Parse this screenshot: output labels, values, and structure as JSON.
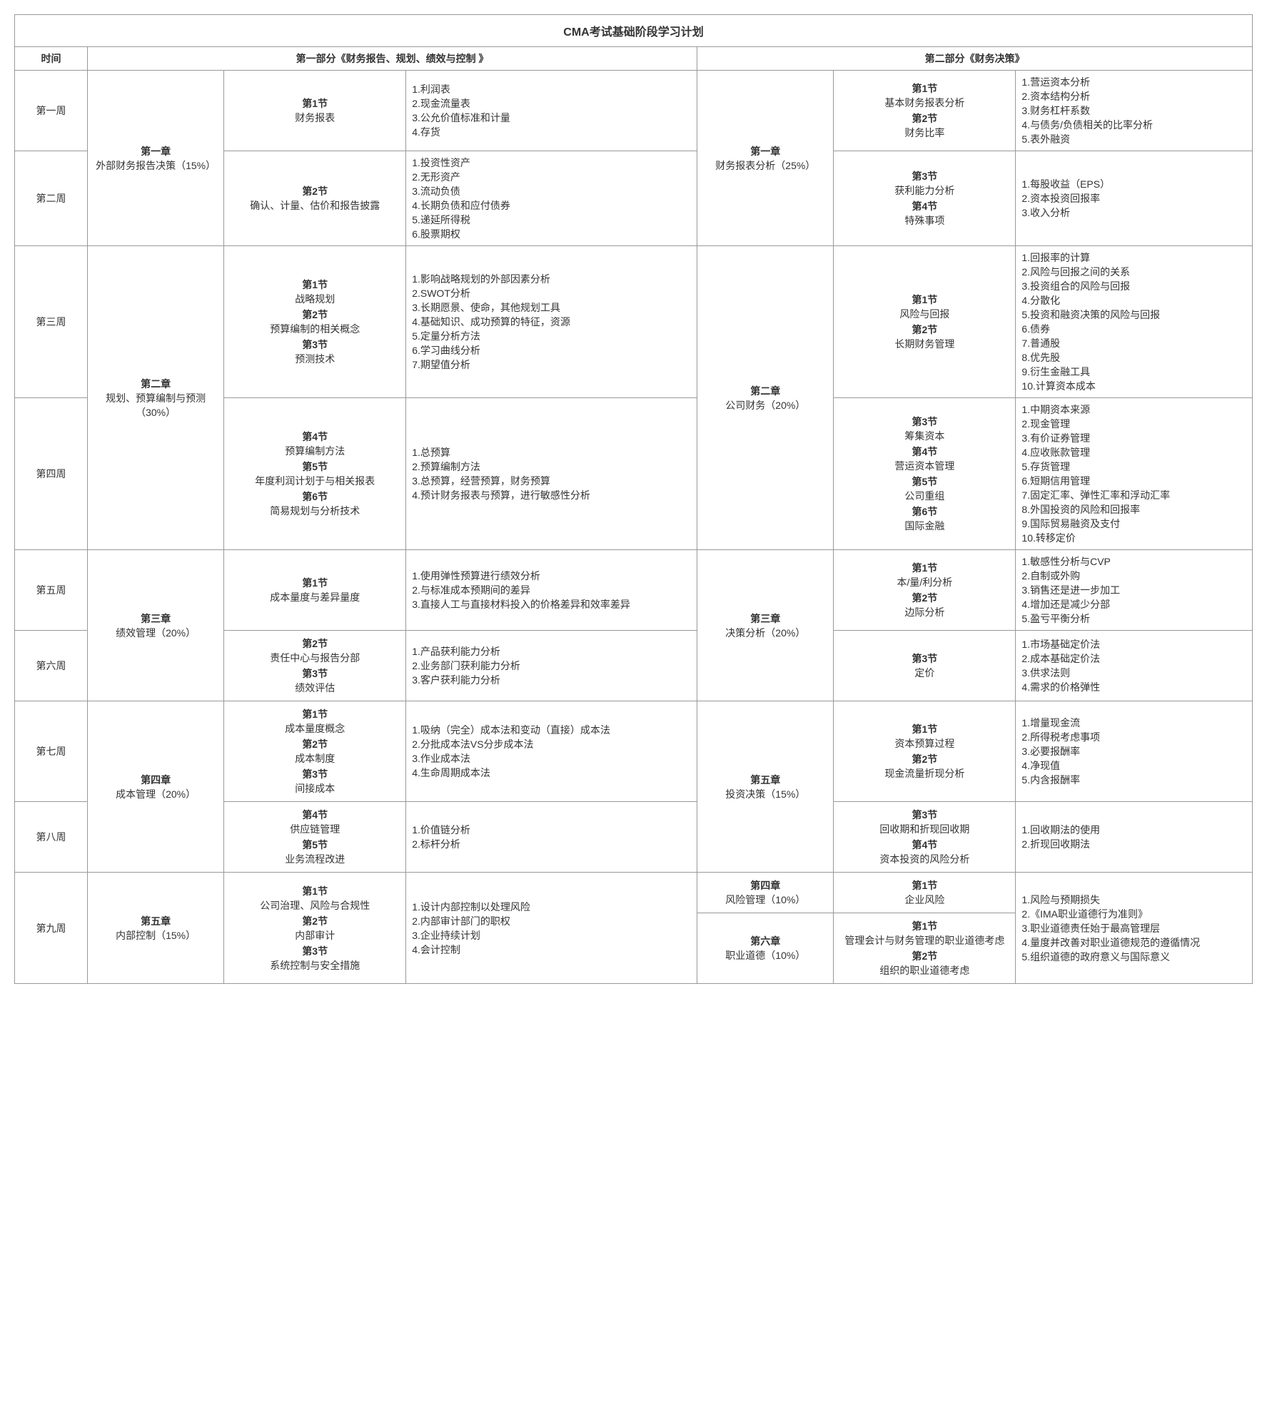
{
  "title": "CMA考试基础阶段学习计划",
  "headers": {
    "time": "时间",
    "part1": "第一部分《财务报告、规划、绩效与控制 》",
    "part2": "第二部分《财务决策》"
  },
  "weeks": {
    "w1": "第一周",
    "w2": "第二周",
    "w3": "第三周",
    "w4": "第四周",
    "w5": "第五周",
    "w6": "第六周",
    "w7": "第七周",
    "w8": "第八周",
    "w9": "第九周"
  },
  "p1": {
    "ch1": {
      "label": "第一章",
      "sub": "外部财务报告决策（15%）"
    },
    "ch2": {
      "label": "第二章",
      "sub": "规划、预算编制与预测（30%）"
    },
    "ch3": {
      "label": "第三章",
      "sub": "绩效管理（20%）"
    },
    "ch4": {
      "label": "第四章",
      "sub": "成本管理（20%）"
    },
    "ch5": {
      "label": "第五章",
      "sub": "内部控制（15%）"
    },
    "w1sec": [
      {
        "h": "第1节",
        "t": "财务报表"
      }
    ],
    "w1top": [
      "1.利润表",
      "2.现金流量表",
      "3.公允价值标准和计量",
      "4.存货"
    ],
    "w2sec": [
      {
        "h": "第2节",
        "t": "确认、计量、估价和报告披露"
      }
    ],
    "w2top": [
      "1.投资性资产",
      "2.无形资产",
      "3.流动负债",
      "4.长期负债和应付债券",
      "5.递延所得税",
      "6.股票期权"
    ],
    "w3sec": [
      {
        "h": "第1节",
        "t": "战略规划"
      },
      {
        "h": "第2节",
        "t": "预算编制的相关概念"
      },
      {
        "h": "第3节",
        "t": "预测技术"
      }
    ],
    "w3top": [
      "1.影响战略规划的外部因素分析",
      "2.SWOT分析",
      "3.长期愿景、使命，其他规划工具",
      "4.基础知识、成功预算的特征，资源",
      "5.定量分析方法",
      "6.学习曲线分析",
      "7.期望值分析"
    ],
    "w4sec": [
      {
        "h": "第4节",
        "t": "预算编制方法"
      },
      {
        "h": "第5节",
        "t": "年度利润计划于与相关报表"
      },
      {
        "h": "第6节",
        "t": "简易规划与分析技术"
      }
    ],
    "w4top": [
      "1.总预算",
      "2.预算编制方法",
      "3.总预算，经营预算，财务预算",
      "4.预计财务报表与预算，进行敏感性分析"
    ],
    "w5sec": [
      {
        "h": "第1节",
        "t": "成本量度与差异量度"
      }
    ],
    "w5top": [
      "1.使用弹性预算进行绩效分析",
      "2.与标准成本预期间的差异",
      "3.直接人工与直接材料投入的价格差异和效率差异"
    ],
    "w6sec": [
      {
        "h": "第2节",
        "t": "责任中心与报告分部"
      },
      {
        "h": "第3节",
        "t": "绩效评估"
      }
    ],
    "w6top": [
      "1.产品获利能力分析",
      "2.业务部门获利能力分析",
      "3.客户获利能力分析"
    ],
    "w7sec": [
      {
        "h": "第1节",
        "t": "成本量度概念"
      },
      {
        "h": "第2节",
        "t": "成本制度"
      },
      {
        "h": "第3节",
        "t": "间接成本"
      }
    ],
    "w7top": [
      "1.吸纳（完全）成本法和变动（直接）成本法",
      "2.分批成本法VS分步成本法",
      "3.作业成本法",
      "4.生命周期成本法"
    ],
    "w8sec": [
      {
        "h": "第4节",
        "t": "供应链管理"
      },
      {
        "h": "第5节",
        "t": "业务流程改进"
      }
    ],
    "w8top": [
      "1.价值链分析",
      "2.标杆分析"
    ],
    "w9sec": [
      {
        "h": "第1节",
        "t": "公司治理、风险与合规性"
      },
      {
        "h": "第2节",
        "t": "内部审计"
      },
      {
        "h": "第3节",
        "t": "系统控制与安全措施"
      }
    ],
    "w9top": [
      "1.设计内部控制以处理风险",
      "2.内部审计部门的职权",
      "3.企业持续计划",
      "4.会计控制"
    ]
  },
  "p2": {
    "ch1": {
      "label": "第一章",
      "sub": "财务报表分析（25%）"
    },
    "ch2": {
      "label": "第二章",
      "sub": "公司财务（20%）"
    },
    "ch3": {
      "label": "第三章",
      "sub": "决策分析（20%）"
    },
    "ch4": {
      "label": "第四章",
      "sub": "风险管理（10%）"
    },
    "ch5": {
      "label": "第五章",
      "sub": "投资决策（15%）"
    },
    "ch6": {
      "label": "第六章",
      "sub": "职业道德（10%）"
    },
    "w1sec": [
      {
        "h": "第1节",
        "t": "基本财务报表分析"
      },
      {
        "h": "第2节",
        "t": "财务比率"
      }
    ],
    "w1top": [
      "1.营运资本分析",
      "2.资本结构分析",
      "3.财务杠杆系数",
      "4.与债务/负债相关的比率分析",
      "5.表外融资"
    ],
    "w2sec": [
      {
        "h": "第3节",
        "t": "获利能力分析"
      },
      {
        "h": "第4节",
        "t": "特殊事项"
      }
    ],
    "w2top": [
      "1.每股收益（EPS）",
      "2.资本投资回报率",
      "3.收入分析"
    ],
    "w3sec": [
      {
        "h": "第1节",
        "t": "风险与回报"
      },
      {
        "h": "第2节",
        "t": "长期财务管理"
      }
    ],
    "w3top": [
      "1.回报率的计算",
      "2.风险与回报之间的关系",
      "3.投资组合的风险与回报",
      "4.分散化",
      "5.投资和融资决策的风险与回报",
      "6.债券",
      "7.普通股",
      "8.优先股",
      "9.衍生金融工具",
      "10.计算资本成本"
    ],
    "w4sec": [
      {
        "h": "第3节",
        "t": "筹集资本"
      },
      {
        "h": "第4节",
        "t": "营运资本管理"
      },
      {
        "h": "第5节",
        "t": "公司重组"
      },
      {
        "h": "第6节",
        "t": "国际金融"
      }
    ],
    "w4top": [
      "1.中期资本来源",
      "2.现金管理",
      "3.有价证券管理",
      "4.应收账款管理",
      "5.存货管理",
      "6.短期信用管理",
      "7.固定汇率、弹性汇率和浮动汇率",
      "8.外国投资的风险和回报率",
      "9.国际贸易融资及支付",
      "10.转移定价"
    ],
    "w5sec": [
      {
        "h": "第1节",
        "t": "本/量/利分析"
      },
      {
        "h": "第2节",
        "t": "边际分析"
      }
    ],
    "w5top": [
      "1.敏感性分析与CVP",
      "2.自制或外购",
      "3.销售还是进一步加工",
      "4.增加还是减少分部",
      "5.盈亏平衡分析"
    ],
    "w6sec": [
      {
        "h": "第3节",
        "t": "定价"
      }
    ],
    "w6top": [
      "1.市场基础定价法",
      "2.成本基础定价法",
      "3.供求法则",
      "4.需求的价格弹性"
    ],
    "w7sec": [
      {
        "h": "第1节",
        "t": "资本预算过程"
      },
      {
        "h": "第2节",
        "t": "现金流量折现分析"
      }
    ],
    "w7top": [
      "1.增量现金流",
      "2.所得税考虑事项",
      "3.必要报酬率",
      "4.净现值",
      "5.内含报酬率"
    ],
    "w8sec": [
      {
        "h": "第3节",
        "t": "回收期和折现回收期"
      },
      {
        "h": "第4节",
        "t": "资本投资的风险分析"
      }
    ],
    "w8top": [
      "1.回收期法的使用",
      "2.折现回收期法"
    ],
    "w9asec": [
      {
        "h": "第1节",
        "t": "企业风险"
      }
    ],
    "w9bsec": [
      {
        "h": "第1节",
        "t": "管理会计与财务管理的职业道德考虑"
      },
      {
        "h": "第2节",
        "t": "组织的职业道德考虑"
      }
    ],
    "w9top": [
      "1.风险与预期损失",
      "2.《IMA职业道德行为准则》",
      "3.职业道德责任始于最高管理层",
      "4.量度并改善对职业道德规范的遵循情况",
      "5.组织道德的政府意义与国际意义"
    ]
  }
}
